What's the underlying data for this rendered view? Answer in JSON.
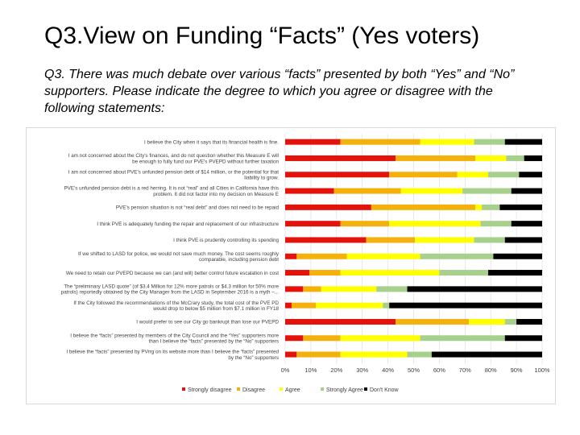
{
  "slide": {
    "title": "Q3.View on Funding “Facts” (Yes voters)",
    "subtitle": "Q3. There was much debate over various “facts” presented by both “Yes” and “No” supporters. Please indicate the degree to which you agree or disagree with the following statements:"
  },
  "chart_data": {
    "type": "bar",
    "orientation": "horizontal",
    "stacked": true,
    "percent_stacked": true,
    "categories": [
      [
        "I believe the City when it says that its financial health is fine."
      ],
      [
        "I am not concerned about the City's finances, and do not question whether this Measure E will",
        "be enough to fully fund our PVE's PVEPD without further taxation"
      ],
      [
        "I am not concerned about PVE's unfunded pension debt of $14 million, or the potential for that",
        "liability to grow."
      ],
      [
        "PVE's unfunded pension debt is a red herring. It is not “real” and all Cities in California have this",
        "problem. It did not factor into my decision on Measure E"
      ],
      [
        "PVE's pension situation is not “real debt” and does not need to be repaid"
      ],
      [
        "I think PVE is adequately funding the repair and replacement of our infrastructure"
      ],
      [
        "I think PVE is prudently controlling its spending"
      ],
      [
        "If we shifted to LASD for police, we would not save much money. The cost seems roughly",
        "comparable, including pension debt"
      ],
      [
        "We need to retain our PVEPD because we can (and will) better control future escalation in cost"
      ],
      [
        "The “preliminary LASD quote” (of $3.4 Million for 12% more patrols or $4.3 million for 50% more",
        "patrols) reportedly obtained by the City Manager from the LASD in September 2016 is a myth –..."
      ],
      [
        "If the City followed the recommendations of the McCrary study, the total cost of the PVE PD",
        "would drop to below $5 million from $7.1 million in FY18"
      ],
      [
        "I would prefer to see our City go bankrupt than lose our PVEPD"
      ],
      [
        "I believe the “facts” presented by members of the City Council and the “Yes” supporters more",
        "than I believe the “facts” presented by the “No” supporters"
      ],
      [
        "I believe the “facts” presented by PVrrg on its website more than I believe the “facts” presented",
        "by the “No” supporters"
      ]
    ],
    "series": [
      {
        "name": "Strongly disagree",
        "color": "#e3120b",
        "values": [
          21.5,
          43,
          40.5,
          19,
          33.5,
          21.5,
          31.5,
          4.5,
          9.5,
          7,
          2.5,
          43,
          7,
          4.5
        ]
      },
      {
        "name": "Disagree",
        "color": "#f5b10b",
        "values": [
          31,
          31,
          26.5,
          26,
          40.5,
          19,
          19,
          19.5,
          12,
          7,
          9.5,
          28.5,
          14.5,
          17
        ]
      },
      {
        "name": "Agree",
        "color": "#ffff00",
        "values": [
          21,
          12,
          12,
          24,
          2.5,
          35.5,
          23,
          28.5,
          38.5,
          21.5,
          26,
          14,
          31,
          26
        ]
      },
      {
        "name": "Strongly Agree",
        "color": "#a8d08d",
        "values": [
          12,
          7,
          12,
          19,
          7,
          12,
          12,
          28.5,
          19,
          12,
          2.5,
          4.5,
          33,
          9.5
        ]
      },
      {
        "name": "Don't Know",
        "color": "#000000",
        "values": [
          14.5,
          7,
          9,
          12,
          16.5,
          12,
          14.5,
          19,
          21,
          52.5,
          59.5,
          10,
          14.5,
          43
        ]
      }
    ],
    "xlim": [
      0,
      100
    ],
    "ticks": [
      "0%",
      "10%",
      "20%",
      "30%",
      "40%",
      "50%",
      "60%",
      "70%",
      "80%",
      "90%",
      "100%"
    ],
    "grid": true,
    "legend_position": "bottom"
  }
}
